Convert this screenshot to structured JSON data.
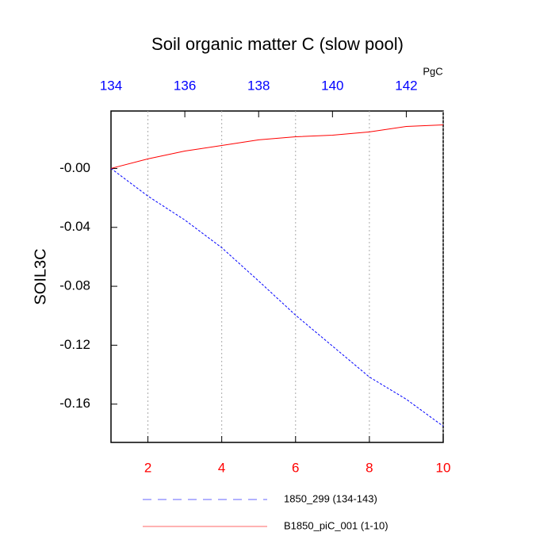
{
  "chart_data": {
    "type": "line",
    "title": "Soil organic matter C (slow pool)",
    "y_label": "SOIL3C",
    "x2_label": "PgC",
    "x": [
      1,
      2,
      3,
      4,
      5,
      6,
      7,
      8,
      9,
      10
    ],
    "xlim": [
      1,
      10
    ],
    "xticks": [
      2,
      4,
      6,
      8,
      10
    ],
    "x2lim": [
      134,
      143
    ],
    "x2ticks": [
      134,
      136,
      138,
      140,
      142
    ],
    "ylim": [
      -0.186,
      0.039
    ],
    "yticks": [
      {
        "value": 0,
        "label": "-0.00"
      },
      -0.04,
      -0.08,
      -0.12,
      -0.16
    ],
    "grid": true,
    "series": [
      {
        "name": "1850_299 (134-143)",
        "color": "#0000ff",
        "dash": true,
        "values": [
          0,
          -0.0188,
          -0.035,
          -0.0538,
          -0.0764,
          -0.0996,
          -0.1206,
          -0.1416,
          -0.1567,
          -0.175
        ]
      },
      {
        "name": "B1850_piC_001 (1-10)",
        "color": "#ff0000",
        "dash": false,
        "values": [
          0,
          0.0065,
          0.0118,
          0.0156,
          0.0194,
          0.0215,
          0.0226,
          0.0248,
          0.0285,
          0.0296
        ]
      }
    ]
  }
}
